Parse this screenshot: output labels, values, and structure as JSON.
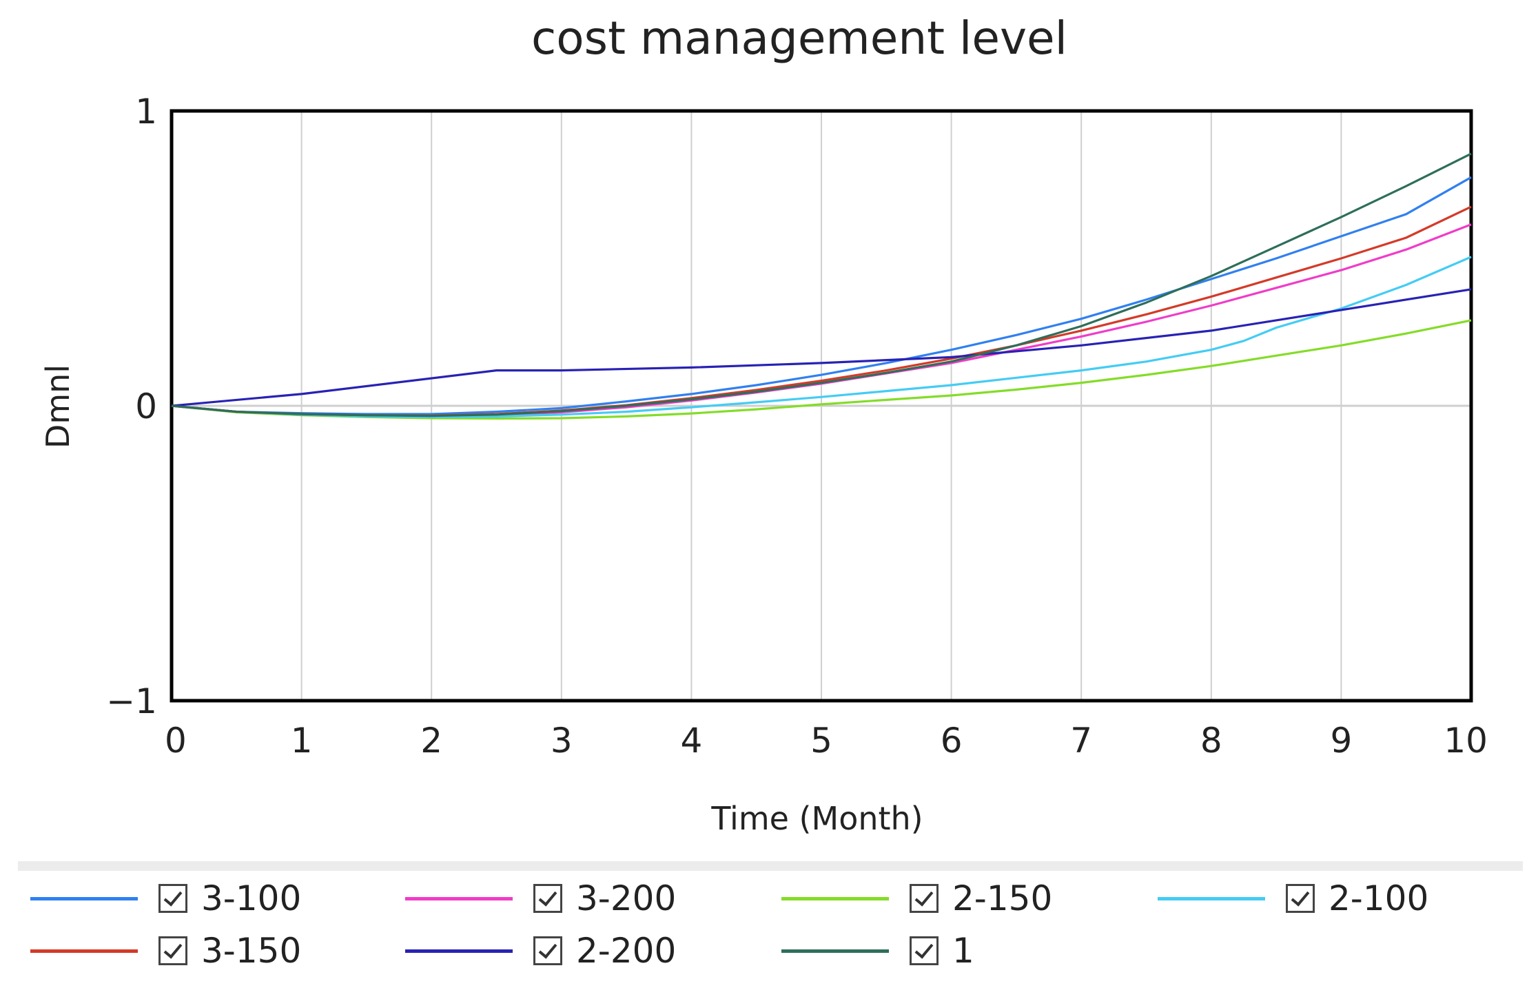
{
  "chart_data": {
    "type": "line",
    "title": "cost management level",
    "xlabel": "Time (Month)",
    "ylabel": "Dmnl",
    "xlim": [
      0,
      10
    ],
    "ylim": [
      -1,
      1
    ],
    "xticks": [
      "0",
      "1",
      "2",
      "3",
      "4",
      "5",
      "6",
      "7",
      "8",
      "9",
      "10"
    ],
    "yticks": [
      "1",
      "0",
      "−1"
    ],
    "grid": true,
    "legend_position": "bottom",
    "series": [
      {
        "name": "3-100",
        "color": "#3080f0",
        "x": [
          0,
          0.5,
          1,
          1.5,
          2,
          2.5,
          3,
          3.5,
          4,
          4.5,
          5,
          5.5,
          6,
          6.5,
          7,
          7.5,
          8,
          8.5,
          9,
          9.5,
          10
        ],
        "y": [
          0,
          -0.02,
          -0.025,
          -0.028,
          -0.028,
          -0.02,
          -0.008,
          0.015,
          0.04,
          0.07,
          0.105,
          0.145,
          0.19,
          0.24,
          0.295,
          0.36,
          0.43,
          0.5,
          0.575,
          0.65,
          0.775
        ]
      },
      {
        "name": "3-200",
        "color": "#f03cc8",
        "x": [
          0,
          0.5,
          1,
          1.5,
          2,
          2.5,
          3,
          3.5,
          4,
          4.5,
          5,
          5.5,
          6,
          6.5,
          7,
          7.5,
          8,
          8.5,
          9,
          9.5,
          10
        ],
        "y": [
          0,
          -0.02,
          -0.03,
          -0.034,
          -0.036,
          -0.032,
          -0.022,
          -0.005,
          0.018,
          0.045,
          0.075,
          0.11,
          0.145,
          0.19,
          0.235,
          0.285,
          0.34,
          0.4,
          0.46,
          0.53,
          0.615
        ]
      },
      {
        "name": "2-150",
        "color": "#84dc28",
        "x": [
          0,
          0.5,
          1,
          1.5,
          2,
          2.5,
          3,
          3.5,
          4,
          4.5,
          5,
          5.5,
          6,
          6.5,
          7,
          7.5,
          8,
          8.5,
          9,
          9.5,
          10
        ],
        "y": [
          0,
          -0.022,
          -0.032,
          -0.038,
          -0.042,
          -0.043,
          -0.042,
          -0.036,
          -0.026,
          -0.012,
          0.005,
          0.02,
          0.035,
          0.055,
          0.078,
          0.105,
          0.135,
          0.17,
          0.205,
          0.245,
          0.29
        ]
      },
      {
        "name": "2-100",
        "color": "#44ccf4",
        "x": [
          0,
          0.5,
          1,
          1.5,
          2,
          2.5,
          3,
          3.5,
          4,
          4.5,
          5,
          5.5,
          6,
          6.5,
          7,
          7.5,
          8,
          8.25,
          8.5,
          9,
          9.5,
          10
        ],
        "y": [
          0,
          -0.02,
          -0.03,
          -0.036,
          -0.038,
          -0.036,
          -0.03,
          -0.02,
          -0.005,
          0.012,
          0.03,
          0.05,
          0.07,
          0.095,
          0.12,
          0.15,
          0.19,
          0.22,
          0.265,
          0.33,
          0.41,
          0.505
        ]
      },
      {
        "name": "3-150",
        "color": "#d43a28",
        "x": [
          0,
          0.5,
          1,
          1.5,
          2,
          2.5,
          3,
          3.5,
          4,
          4.5,
          5,
          5.5,
          6,
          6.5,
          7,
          7.5,
          8,
          8.5,
          9,
          9.5,
          10
        ],
        "y": [
          0,
          -0.02,
          -0.028,
          -0.032,
          -0.033,
          -0.028,
          -0.016,
          0.002,
          0.026,
          0.054,
          0.085,
          0.12,
          0.16,
          0.205,
          0.255,
          0.31,
          0.37,
          0.435,
          0.5,
          0.57,
          0.675
        ]
      },
      {
        "name": "2-200",
        "color": "#2822b4",
        "x": [
          0,
          1,
          2.5,
          3,
          4,
          5,
          6,
          7,
          8,
          9,
          10
        ],
        "y": [
          0,
          0.04,
          0.12,
          0.12,
          0.13,
          0.145,
          0.165,
          0.205,
          0.255,
          0.325,
          0.395
        ]
      },
      {
        "name": "1",
        "color": "#2e6e5a",
        "x": [
          0,
          0.5,
          1,
          1.5,
          2,
          2.5,
          3,
          3.5,
          4,
          4.5,
          5,
          5.5,
          6,
          6.5,
          7,
          7.5,
          8,
          8.5,
          9,
          9.5,
          10
        ],
        "y": [
          0,
          -0.02,
          -0.028,
          -0.032,
          -0.034,
          -0.03,
          -0.018,
          0,
          0.022,
          0.048,
          0.078,
          0.112,
          0.15,
          0.205,
          0.27,
          0.35,
          0.44,
          0.54,
          0.64,
          0.745,
          0.855
        ]
      }
    ]
  }
}
